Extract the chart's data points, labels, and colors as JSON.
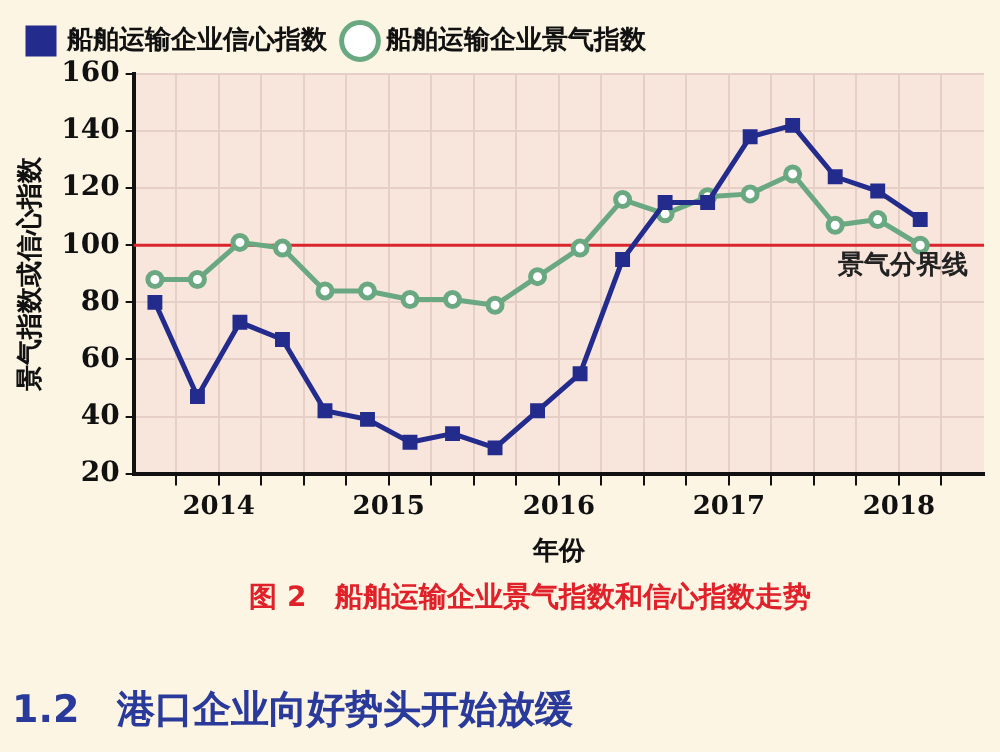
{
  "chart_data": {
    "type": "line",
    "xlabel": "年份",
    "ylabel": "景气指数或信心指数",
    "x": [
      2014.125,
      2014.375,
      2014.625,
      2014.875,
      2015.125,
      2015.375,
      2015.625,
      2015.875,
      2016.125,
      2016.375,
      2016.625,
      2016.875,
      2017.125,
      2017.375,
      2017.625,
      2017.875,
      2018.125,
      2018.375,
      2018.625
    ],
    "series": [
      {
        "name": "船舶运输企业景气指数",
        "color": "#6aa882",
        "marker": "circle",
        "values": [
          88,
          88,
          101,
          99,
          84,
          84,
          81,
          81,
          79,
          89,
          99,
          116,
          111,
          117,
          118,
          125,
          107,
          109,
          100
        ]
      },
      {
        "name": "船舶运输企业信心指数",
        "color": "#232b8c",
        "marker": "square",
        "values": [
          80,
          47,
          73,
          67,
          42,
          39,
          31,
          34,
          29,
          42,
          55,
          95,
          115,
          115,
          138,
          142,
          124,
          119,
          109
        ]
      }
    ],
    "xlim": [
      2014,
      2019
    ],
    "xticks": [
      {
        "value": 2014.25,
        "label": null
      },
      {
        "value": 2014.5,
        "label": "2014"
      },
      {
        "value": 2014.75,
        "label": null
      },
      {
        "value": 2015,
        "label": null
      },
      {
        "value": 2015.25,
        "label": null
      },
      {
        "value": 2015.5,
        "label": "2015"
      },
      {
        "value": 2015.75,
        "label": null
      },
      {
        "value": 2016,
        "label": null
      },
      {
        "value": 2016.25,
        "label": null
      },
      {
        "value": 2016.5,
        "label": "2016"
      },
      {
        "value": 2016.75,
        "label": null
      },
      {
        "value": 2017,
        "label": null
      },
      {
        "value": 2017.25,
        "label": null
      },
      {
        "value": 2017.5,
        "label": "2017"
      },
      {
        "value": 2017.75,
        "label": null
      },
      {
        "value": 2018,
        "label": null
      },
      {
        "value": 2018.25,
        "label": null
      },
      {
        "value": 2018.5,
        "label": "2018"
      },
      {
        "value": 2018.75,
        "label": null
      }
    ],
    "ylim": [
      20,
      160
    ],
    "yticks": [
      20,
      40,
      60,
      80,
      100,
      120,
      140,
      160
    ],
    "ref_lines": [
      {
        "axis": "y",
        "value": 100,
        "label": "景气分界线",
        "color": "#d8262c"
      }
    ],
    "grid": true,
    "legend": "top left",
    "line_style": "solid",
    "annotations": [
      "图 2　船舶运输企业景气指数和信心指数走势",
      "1.2　港口企业向好势头开始放缓"
    ]
  }
}
